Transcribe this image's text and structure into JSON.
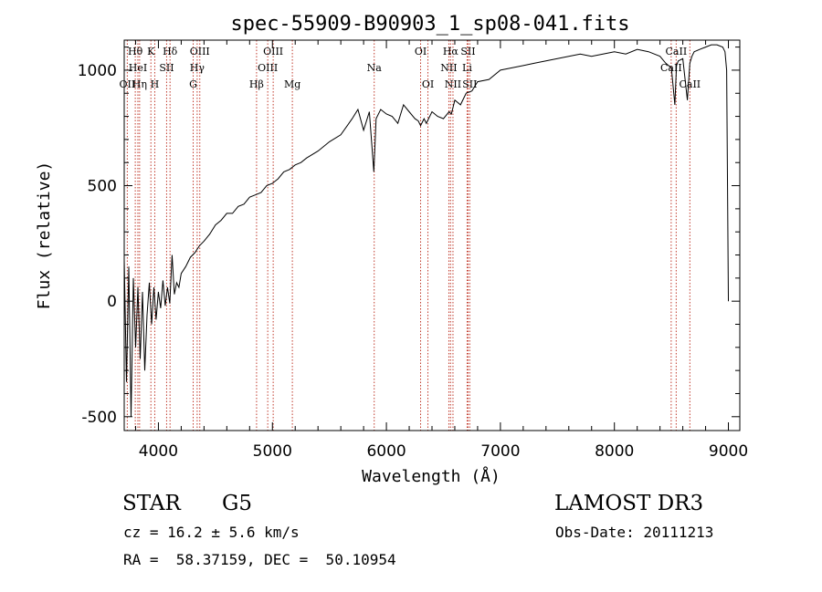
{
  "chart_data": {
    "type": "line",
    "title": "spec-55909-B90903_1_sp08-041.fits",
    "xlabel": "Wavelength (Å)",
    "ylabel": "Flux (relative)",
    "xlim": [
      3700,
      9100
    ],
    "ylim": [
      -560,
      1130
    ],
    "x_ticks": [
      4000,
      5000,
      6000,
      7000,
      8000,
      9000
    ],
    "y_ticks": [
      -500,
      0,
      500,
      1000
    ],
    "series": [
      {
        "name": "spectrum",
        "x": [
          3700,
          3720,
          3740,
          3760,
          3780,
          3800,
          3820,
          3840,
          3860,
          3880,
          3900,
          3920,
          3940,
          3960,
          3980,
          4000,
          4020,
          4040,
          4060,
          4080,
          4100,
          4120,
          4140,
          4160,
          4180,
          4200,
          4240,
          4280,
          4320,
          4360,
          4400,
          4450,
          4500,
          4550,
          4600,
          4650,
          4700,
          4750,
          4800,
          4850,
          4900,
          4950,
          5000,
          5050,
          5100,
          5150,
          5200,
          5250,
          5300,
          5400,
          5500,
          5600,
          5700,
          5750,
          5800,
          5850,
          5890,
          5910,
          5950,
          6000,
          6050,
          6100,
          6150,
          6200,
          6250,
          6280,
          6300,
          6330,
          6350,
          6400,
          6450,
          6500,
          6550,
          6570,
          6600,
          6650,
          6700,
          6750,
          6800,
          6900,
          7000,
          7100,
          7200,
          7300,
          7400,
          7500,
          7600,
          7700,
          7800,
          7900,
          8000,
          8100,
          8200,
          8300,
          8400,
          8450,
          8500,
          8530,
          8545,
          8560,
          8600,
          8640,
          8662,
          8680,
          8700,
          8750,
          8800,
          8850,
          8900,
          8950,
          8970,
          8985,
          9000
        ],
        "values": [
          180,
          -350,
          150,
          -500,
          100,
          -200,
          60,
          -250,
          40,
          -300,
          -60,
          80,
          -100,
          60,
          -80,
          40,
          -30,
          90,
          -20,
          60,
          -10,
          200,
          30,
          80,
          60,
          120,
          150,
          190,
          210,
          240,
          260,
          290,
          330,
          350,
          380,
          380,
          410,
          420,
          450,
          460,
          470,
          500,
          510,
          530,
          560,
          570,
          590,
          600,
          620,
          650,
          690,
          720,
          790,
          830,
          740,
          820,
          560,
          790,
          830,
          810,
          800,
          770,
          850,
          820,
          790,
          780,
          760,
          790,
          770,
          820,
          800,
          790,
          820,
          810,
          870,
          850,
          900,
          910,
          950,
          960,
          1000,
          1010,
          1020,
          1030,
          1040,
          1050,
          1060,
          1070,
          1060,
          1070,
          1080,
          1070,
          1090,
          1080,
          1060,
          1030,
          1010,
          850,
          1020,
          1040,
          1050,
          870,
          1030,
          1060,
          1080,
          1090,
          1100,
          1110,
          1110,
          1100,
          1080,
          1000,
          0
        ]
      }
    ],
    "lines": [
      {
        "name": "Hθ",
        "wl": 3797,
        "row": 1
      },
      {
        "name": "OII",
        "wl": 3727,
        "row": 3
      },
      {
        "name": "HeI",
        "wl": 3820,
        "row": 2
      },
      {
        "name": "Hη",
        "wl": 3835,
        "row": 3
      },
      {
        "name": "K",
        "wl": 3934,
        "row": 1
      },
      {
        "name": "SII",
        "wl": 4072,
        "row": 2
      },
      {
        "name": "H",
        "wl": 3968,
        "row": 3
      },
      {
        "name": "Hδ",
        "wl": 4102,
        "row": 1
      },
      {
        "name": "OIII",
        "wl": 4363,
        "row": 1
      },
      {
        "name": "Hγ",
        "wl": 4340,
        "row": 2
      },
      {
        "name": "G",
        "wl": 4305,
        "row": 3
      },
      {
        "name": "OIII",
        "wl": 5007,
        "row": 1
      },
      {
        "name": "OIII",
        "wl": 4959,
        "row": 2
      },
      {
        "name": "Hβ",
        "wl": 4861,
        "row": 3
      },
      {
        "name": "Mg",
        "wl": 5175,
        "row": 3
      },
      {
        "name": "Na",
        "wl": 5893,
        "row": 2
      },
      {
        "name": "OI",
        "wl": 6300,
        "row": 1
      },
      {
        "name": "OI",
        "wl": 6364,
        "row": 3
      },
      {
        "name": "Hα",
        "wl": 6563,
        "row": 1
      },
      {
        "name": "SII",
        "wl": 6716,
        "row": 1
      },
      {
        "name": "NII",
        "wl": 6548,
        "row": 2
      },
      {
        "name": "Li",
        "wl": 6708,
        "row": 2
      },
      {
        "name": "NII",
        "wl": 6584,
        "row": 3
      },
      {
        "name": "SII",
        "wl": 6731,
        "row": 3
      },
      {
        "name": "CaII",
        "wl": 8542,
        "row": 1
      },
      {
        "name": "CaII",
        "wl": 8498,
        "row": 2
      },
      {
        "name": "CaII",
        "wl": 8662,
        "row": 3
      }
    ]
  },
  "info": {
    "object_class": "STAR",
    "subclass": "G5",
    "survey": "LAMOST DR3",
    "cz": "cz = 16.2 ± 5.6 km/s",
    "obs_date": "Obs-Date: 20111213",
    "coords": "RA =  58.37159, DEC =  50.10954"
  }
}
